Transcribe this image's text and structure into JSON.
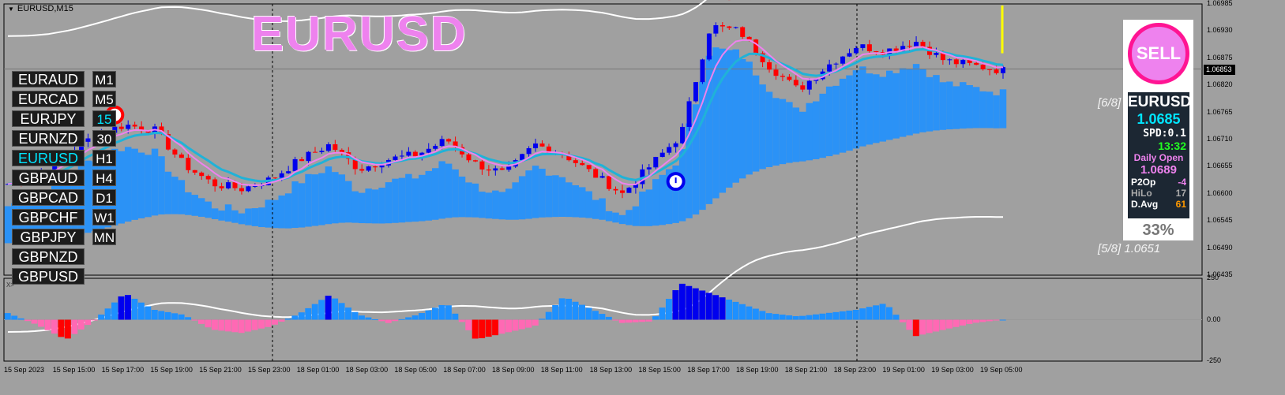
{
  "chart_title": "EURUSD,M15",
  "big_symbol": "EURUSD",
  "sub_window_label": "X>",
  "symbols": [
    "EURAUD",
    "EURCAD",
    "EURJPY",
    "EURNZD",
    "EURUSD",
    "GBPAUD",
    "GBPCAD",
    "GBPCHF",
    "GBPJPY",
    "GBPNZD",
    "GBPUSD"
  ],
  "active_symbol": "EURUSD",
  "timeframes": [
    "M1",
    "M5",
    "15",
    "30",
    "H1",
    "H4",
    "D1",
    "W1",
    "MN"
  ],
  "active_timeframe": "15",
  "fib_labels": {
    "upper": "[6/8] 1.06",
    "lower": "[5/8] 1.0651"
  },
  "panel": {
    "signal": "SELL",
    "symbol": "EURUSD",
    "price": "1.0685",
    "spread": "SPD:0.1",
    "time": "13:32",
    "daily_open_label": "Daily Open",
    "daily_open": "1.0689",
    "p2op_label": "P2Op",
    "p2op_value": "-4",
    "hilo_label": "HiLo",
    "hilo_value": "17",
    "davg_label": "D.Avg",
    "davg_value": "61",
    "percent": "33%"
  },
  "current_price_tag": "1.06853",
  "colors": {
    "bull": "#0000ee",
    "bear": "#ff0000",
    "ma_fast": "#ee82ee",
    "ma_slow": "#20b2d8",
    "band": "#ffffff",
    "hist_pos": "#1e90ff",
    "hist_neg": "#ff69b4",
    "sym_active": "#00e5ff"
  },
  "chart_data": [
    {
      "type": "candlestick",
      "title": "EURUSD,M15",
      "y_ticks": [
        "1.06985",
        "1.06930",
        "1.06875",
        "1.06820",
        "1.06765",
        "1.06710",
        "1.06655",
        "1.06600",
        "1.06545",
        "1.06490",
        "1.06435"
      ],
      "ylim": [
        1.06435,
        1.06985
      ],
      "x_ticks": [
        "15 Sep 2023",
        "15 Sep 15:00",
        "15 Sep 17:00",
        "15 Sep 19:00",
        "15 Sep 21:00",
        "15 Sep 23:00",
        "18 Sep 01:00",
        "18 Sep 03:00",
        "18 Sep 05:00",
        "18 Sep 07:00",
        "18 Sep 09:00",
        "18 Sep 11:00",
        "18 Sep 13:00",
        "18 Sep 15:00",
        "18 Sep 17:00",
        "18 Sep 19:00",
        "18 Sep 21:00",
        "18 Sep 23:00",
        "19 Sep 01:00",
        "19 Sep 03:00",
        "19 Sep 05:00"
      ],
      "close_anchors": [
        1.0662,
        1.0664,
        1.0668,
        1.0672,
        1.0674,
        1.0673,
        1.0666,
        1.0662,
        1.0661,
        1.0663,
        1.0667,
        1.067,
        1.0665,
        1.0667,
        1.0668,
        1.0671,
        1.0666,
        1.0664,
        1.067,
        1.0668,
        1.0664,
        1.066,
        1.0666,
        1.0672,
        1.0694,
        1.0693,
        1.0686,
        1.0681,
        1.0686,
        1.069,
        1.0689,
        1.0691,
        1.0687,
        1.0686,
        1.0685
      ],
      "current_price": 1.06853
    },
    {
      "type": "bar",
      "title": "X>",
      "y_ticks": [
        "250",
        "0.00",
        "-250"
      ],
      "ylim": [
        -250,
        250
      ],
      "value_anchors": [
        40,
        -30,
        -120,
        0,
        160,
        60,
        30,
        -60,
        -80,
        -40,
        40,
        150,
        30,
        -20,
        30,
        100,
        -120,
        -80,
        -40,
        140,
        60,
        -20,
        -10,
        220,
        160,
        100,
        40,
        20,
        40,
        60,
        100,
        -100,
        -60,
        -20,
        0
      ]
    }
  ]
}
